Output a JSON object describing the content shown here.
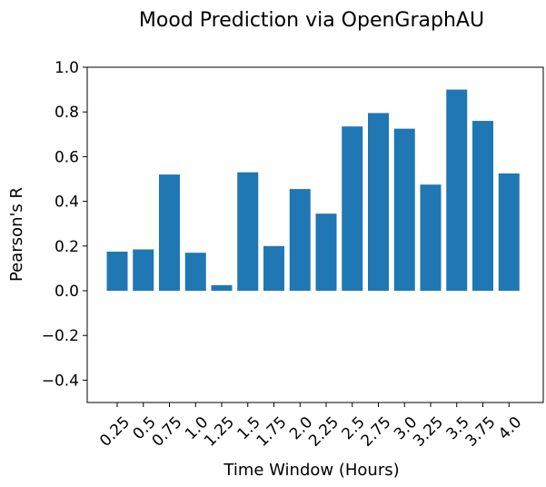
{
  "chart_data": {
    "type": "bar",
    "title": "Mood Prediction via OpenGraphAU",
    "xlabel": "Time Window (Hours)",
    "ylabel": "Pearson's R",
    "categories": [
      "0.25",
      "0.5",
      "0.75",
      "1.0",
      "1.25",
      "1.5",
      "1.75",
      "2.0",
      "2.25",
      "2.5",
      "2.75",
      "3.0",
      "3.25",
      "3.5",
      "3.75",
      "4.0"
    ],
    "values": [
      0.175,
      0.185,
      0.52,
      0.17,
      0.025,
      0.53,
      0.2,
      0.455,
      0.345,
      0.735,
      0.795,
      0.725,
      0.475,
      0.9,
      0.76,
      0.525
    ],
    "ylim": [
      -0.5,
      1.0
    ],
    "yticks": [
      -0.4,
      -0.2,
      0.0,
      0.2,
      0.4,
      0.6,
      0.8,
      1.0
    ],
    "ytick_labels": [
      "−0.4",
      "−0.2",
      "0.0",
      "0.2",
      "0.4",
      "0.6",
      "0.8",
      "1.0"
    ],
    "bar_color": "#1f77b4",
    "grid": false,
    "legend": "none"
  }
}
